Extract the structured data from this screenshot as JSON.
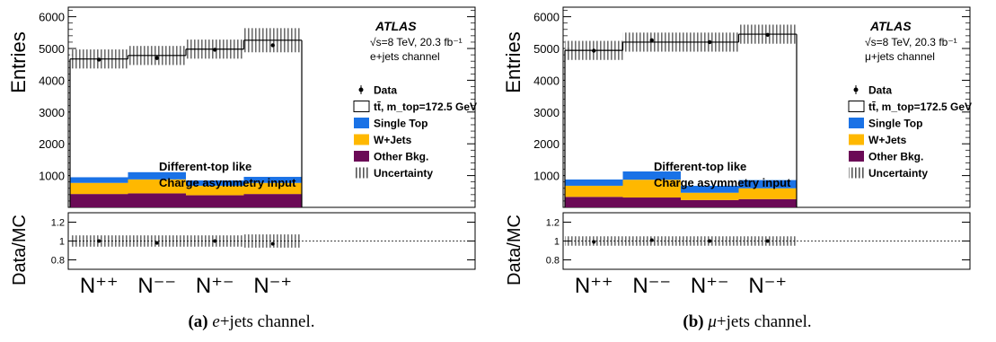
{
  "figure": {
    "captions": [
      {
        "label": "(a)",
        "text_italic": "e",
        "text_rest": "+jets channel."
      },
      {
        "label": "(b)",
        "text_italic": "μ",
        "text_rest": "+jets channel."
      }
    ]
  },
  "chart_data": [
    {
      "type": "bar",
      "subtype": "stacked-histogram-with-ratio",
      "panel": "a",
      "ylabel": "Entries",
      "ratio_ylabel": "Data/MC",
      "ylim": [
        0,
        6300
      ],
      "yticks": [
        1000,
        2000,
        3000,
        4000,
        5000,
        6000
      ],
      "ratio_ylim": [
        0.7,
        1.3
      ],
      "ratio_yticks": [
        "0.8",
        "1",
        "1.2"
      ],
      "categories": [
        "N⁺⁺",
        "N⁻⁻",
        "N⁺⁻",
        "N⁻⁺"
      ],
      "atlas_label": "ATLAS",
      "energy_label": "√s=8 TeV, 20.3 fb⁻¹",
      "channel_label": "e+jets channel",
      "annotation_lines": [
        "Different-top like",
        "Charge asymmetry input"
      ],
      "legend": [
        {
          "key": "data",
          "label": "Data"
        },
        {
          "key": "ttbar",
          "label": "tt̄, m_top=172.5 GeV"
        },
        {
          "key": "single_top",
          "label": "Single Top"
        },
        {
          "key": "wjets",
          "label": "W+Jets"
        },
        {
          "key": "other",
          "label": "Other Bkg."
        },
        {
          "key": "unc",
          "label": "Uncertainty"
        }
      ],
      "colors": {
        "single_top": "#1a72e6",
        "wjets": "#ffb800",
        "other": "#6b0a56",
        "ttbar": "#ffffff"
      },
      "series": [
        {
          "name": "Other Bkg.",
          "key": "other",
          "values": [
            420,
            440,
            380,
            420
          ]
        },
        {
          "name": "W+Jets",
          "key": "wjets",
          "values": [
            350,
            440,
            300,
            350
          ]
        },
        {
          "name": "Single Top",
          "key": "single_top",
          "values": [
            180,
            230,
            170,
            190
          ]
        },
        {
          "name": "tt̄, m_top=172.5 GeV",
          "key": "ttbar",
          "values": [
            3720,
            3670,
            4130,
            4300
          ]
        }
      ],
      "mc_total": [
        4670,
        4780,
        4980,
        5260
      ],
      "data": [
        4650,
        4700,
        4960,
        5100
      ],
      "uncertainty": [
        300,
        300,
        300,
        380
      ],
      "ratio": [
        1.0,
        0.98,
        1.0,
        0.97
      ],
      "ratio_unc": [
        0.06,
        0.06,
        0.06,
        0.07
      ]
    },
    {
      "type": "bar",
      "subtype": "stacked-histogram-with-ratio",
      "panel": "b",
      "ylabel": "Entries",
      "ratio_ylabel": "Data/MC",
      "ylim": [
        0,
        6300
      ],
      "yticks": [
        1000,
        2000,
        3000,
        4000,
        5000,
        6000
      ],
      "ratio_ylim": [
        0.7,
        1.3
      ],
      "ratio_yticks": [
        "0.8",
        "1",
        "1.2"
      ],
      "categories": [
        "N⁺⁺",
        "N⁻⁻",
        "N⁺⁻",
        "N⁻⁺"
      ],
      "atlas_label": "ATLAS",
      "energy_label": "√s=8 TeV, 20.3 fb⁻¹",
      "channel_label": "μ+jets channel",
      "annotation_lines": [
        "Different-top like",
        "Charge asymmetry input"
      ],
      "legend": [
        {
          "key": "data",
          "label": "Data"
        },
        {
          "key": "ttbar",
          "label": "tt̄, m_top=172.5 GeV"
        },
        {
          "key": "single_top",
          "label": "Single Top"
        },
        {
          "key": "wjets",
          "label": "W+Jets"
        },
        {
          "key": "other",
          "label": "Other Bkg."
        },
        {
          "key": "unc",
          "label": "Uncertainty"
        }
      ],
      "colors": {
        "single_top": "#1a72e6",
        "wjets": "#ffb800",
        "other": "#6b0a56",
        "ttbar": "#ffffff"
      },
      "series": [
        {
          "name": "Other Bkg.",
          "key": "other",
          "values": [
            330,
            310,
            230,
            260
          ]
        },
        {
          "name": "W+Jets",
          "key": "wjets",
          "values": [
            350,
            560,
            230,
            340
          ]
        },
        {
          "name": "Single Top",
          "key": "single_top",
          "values": [
            200,
            260,
            220,
            260
          ]
        },
        {
          "name": "tt̄, m_top=172.5 GeV",
          "key": "ttbar",
          "values": [
            4060,
            4070,
            4520,
            4590
          ]
        }
      ],
      "mc_total": [
        4940,
        5200,
        5200,
        5450
      ],
      "data": [
        4930,
        5260,
        5200,
        5430
      ],
      "uncertainty": [
        300,
        300,
        300,
        300
      ],
      "ratio": [
        0.99,
        1.01,
        1.0,
        1.0
      ],
      "ratio_unc": [
        0.05,
        0.05,
        0.05,
        0.05
      ]
    }
  ]
}
